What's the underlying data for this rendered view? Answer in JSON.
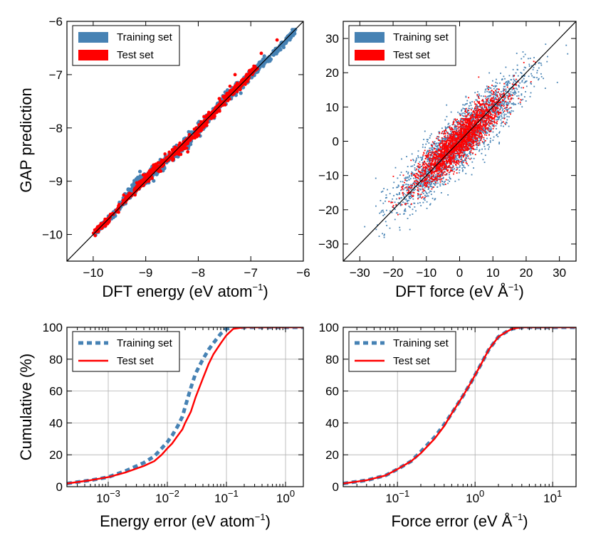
{
  "colors": {
    "training": "#4682b4",
    "test": "#ff0000",
    "ideal": "#000000",
    "grid": "#b0b0b0"
  },
  "ylabel_top": "GAP prediction",
  "ylabel_bottom": "Cumulative (%)",
  "chart_data": [
    {
      "id": "energy-parity",
      "type": "scatter",
      "xlabel": {
        "text": "DFT energy (eV atom",
        "sup": "−1",
        "close": ")"
      },
      "ylabel": "GAP prediction",
      "xlim": [
        -10.5,
        -6
      ],
      "ylim": [
        -10.5,
        -6
      ],
      "xticks": [
        -10,
        -9,
        -8,
        -7,
        -6
      ],
      "yticks": [
        -10,
        -9,
        -8,
        -7,
        -6
      ],
      "xtick_labels": [
        "−10",
        "−9",
        "−8",
        "−7",
        "−6"
      ],
      "ytick_labels": [
        "−10",
        "−9",
        "−8",
        "−7",
        "−6"
      ],
      "legend": [
        "Training set",
        "Test set"
      ],
      "legend_loc": "upper-left",
      "ideal_line": [
        [
          -10.5,
          -10.5
        ],
        [
          -6,
          -6
        ]
      ],
      "series": [
        {
          "name": "Training set",
          "shape": "band",
          "points": [
            [
              -10.0,
              -10.0
            ],
            [
              -9.6,
              -9.6
            ],
            [
              -9.2,
              -9.1
            ],
            [
              -9.0,
              -8.95
            ],
            [
              -8.7,
              -8.7
            ],
            [
              -8.4,
              -8.45
            ],
            [
              -8.1,
              -8.15
            ],
            [
              -7.85,
              -7.85
            ],
            [
              -7.5,
              -7.45
            ],
            [
              -7.2,
              -7.2
            ],
            [
              -6.9,
              -6.9
            ],
            [
              -6.5,
              -6.55
            ],
            [
              -6.15,
              -6.15
            ]
          ],
          "spread": [
            0.05,
            0.06,
            0.12,
            0.1,
            0.11,
            0.1,
            0.12,
            0.11,
            0.09,
            0.09,
            0.08,
            0.06,
            0.05
          ]
        },
        {
          "name": "Test set",
          "shape": "band",
          "points": [
            [
              -9.95,
              -9.95
            ],
            [
              -9.7,
              -9.7
            ],
            [
              -9.1,
              -9.05
            ],
            [
              -8.9,
              -8.85
            ],
            [
              -8.6,
              -8.6
            ],
            [
              -8.3,
              -8.35
            ],
            [
              -8.0,
              -8.05
            ],
            [
              -7.7,
              -7.7
            ],
            [
              -7.4,
              -7.35
            ],
            [
              -7.1,
              -7.1
            ],
            [
              -6.9,
              -6.85
            ]
          ],
          "spread": [
            0.04,
            0.05,
            0.08,
            0.08,
            0.09,
            0.08,
            0.09,
            0.08,
            0.07,
            0.07,
            0.06
          ],
          "outliers": [
            [
              -7.3,
              -7.0
            ],
            [
              -8.2,
              -8.45
            ],
            [
              -7.6,
              -7.45
            ],
            [
              -6.8,
              -6.6
            ],
            [
              -6.5,
              -6.35
            ]
          ]
        }
      ]
    },
    {
      "id": "force-parity",
      "type": "scatter",
      "xlabel": {
        "text": "DFT force (eV Å",
        "sup": "−1",
        "close": ")"
      },
      "ylabel": "",
      "xlim": [
        -35,
        35
      ],
      "ylim": [
        -35,
        35
      ],
      "xticks": [
        -30,
        -20,
        -10,
        0,
        10,
        20,
        30
      ],
      "yticks": [
        -30,
        -20,
        -10,
        0,
        10,
        20,
        30
      ],
      "xtick_labels": [
        "−30",
        "−20",
        "−10",
        "0",
        "10",
        "20",
        "30"
      ],
      "ytick_labels": [
        "−30",
        "−20",
        "−10",
        "0",
        "10",
        "20",
        "30"
      ],
      "legend": [
        "Training set",
        "Test set"
      ],
      "legend_loc": "upper-left",
      "ideal_line": [
        [
          -35,
          -35
        ],
        [
          35,
          35
        ]
      ],
      "series": [
        {
          "name": "Training set",
          "shape": "ellipse",
          "center": [
            0,
            0
          ],
          "major_half": 27,
          "minor_half": 6
        },
        {
          "name": "Test set",
          "shape": "ellipse",
          "center": [
            0,
            0
          ],
          "major_half": 19,
          "minor_half": 4.5
        }
      ]
    },
    {
      "id": "energy-cdf",
      "type": "line",
      "xscale": "log",
      "xlabel": {
        "text": "Energy error (eV atom",
        "sup": "−1",
        "close": ")"
      },
      "ylabel": "Cumulative (%)",
      "xlim": [
        0.0002,
        2
      ],
      "ylim": [
        0,
        100
      ],
      "xticks": [
        0.001,
        0.01,
        0.1,
        1
      ],
      "xtick_labels": [
        {
          "b": "10",
          "e": "−3"
        },
        {
          "b": "10",
          "e": "−2"
        },
        {
          "b": "10",
          "e": "−1"
        },
        {
          "b": "10",
          "e": "0"
        }
      ],
      "yticks": [
        0,
        20,
        40,
        60,
        80,
        100
      ],
      "ytick_labels": [
        "0",
        "20",
        "40",
        "60",
        "80",
        "100"
      ],
      "legend": [
        "Training set",
        "Test set"
      ],
      "legend_loc": "upper-left",
      "series": [
        {
          "name": "Training set",
          "style": "dashed",
          "x": [
            0.0002,
            0.0005,
            0.001,
            0.002,
            0.004,
            0.006,
            0.008,
            0.01,
            0.012,
            0.015,
            0.018,
            0.02,
            0.025,
            0.03,
            0.04,
            0.05,
            0.06,
            0.08,
            0.1,
            0.13,
            0.2,
            2
          ],
          "y": [
            2,
            4,
            6,
            10,
            15,
            19,
            24,
            28,
            32,
            38,
            44,
            50,
            62,
            71,
            80,
            86,
            90,
            96,
            99,
            100,
            100,
            100
          ]
        },
        {
          "name": "Test set",
          "style": "solid",
          "x": [
            0.0002,
            0.0005,
            0.001,
            0.002,
            0.004,
            0.006,
            0.008,
            0.01,
            0.012,
            0.015,
            0.018,
            0.02,
            0.025,
            0.03,
            0.04,
            0.05,
            0.06,
            0.08,
            0.1,
            0.13,
            0.2,
            2
          ],
          "y": [
            2,
            4,
            6,
            9,
            13,
            16,
            20,
            24,
            27,
            32,
            36,
            40,
            47,
            56,
            68,
            77,
            83,
            90,
            95,
            99,
            100,
            100
          ]
        }
      ]
    },
    {
      "id": "force-cdf",
      "type": "line",
      "xscale": "log",
      "xlabel": {
        "text": "Force error (eV Å",
        "sup": "−1",
        "close": ")"
      },
      "ylabel": "",
      "xlim": [
        0.02,
        20
      ],
      "ylim": [
        0,
        100
      ],
      "xticks": [
        0.1,
        1,
        10
      ],
      "xtick_labels": [
        {
          "b": "10",
          "e": "−1"
        },
        {
          "b": "10",
          "e": "0"
        },
        {
          "b": "10",
          "e": "1"
        }
      ],
      "yticks": [
        0,
        20,
        40,
        60,
        80,
        100
      ],
      "ytick_labels": [
        "0",
        "20",
        "40",
        "60",
        "80",
        "100"
      ],
      "legend": [
        "Training set",
        "Test set"
      ],
      "legend_loc": "upper-left",
      "series": [
        {
          "name": "Training set",
          "style": "dashed",
          "x": [
            0.02,
            0.04,
            0.07,
            0.1,
            0.15,
            0.2,
            0.3,
            0.4,
            0.5,
            0.7,
            0.9,
            1.2,
            1.5,
            2,
            2.5,
            3,
            4,
            20
          ],
          "y": [
            2,
            4,
            7,
            11,
            16,
            22,
            31,
            39,
            46,
            57,
            66,
            77,
            86,
            94,
            97,
            99,
            100,
            100
          ]
        },
        {
          "name": "Test set",
          "style": "solid",
          "x": [
            0.02,
            0.04,
            0.07,
            0.1,
            0.15,
            0.2,
            0.3,
            0.4,
            0.5,
            0.7,
            0.9,
            1.2,
            1.5,
            2,
            2.5,
            3,
            4,
            20
          ],
          "y": [
            2,
            4,
            7,
            11,
            16,
            21,
            30,
            38,
            46,
            57,
            66,
            77,
            86,
            94,
            97,
            99,
            100,
            100
          ]
        }
      ]
    }
  ]
}
